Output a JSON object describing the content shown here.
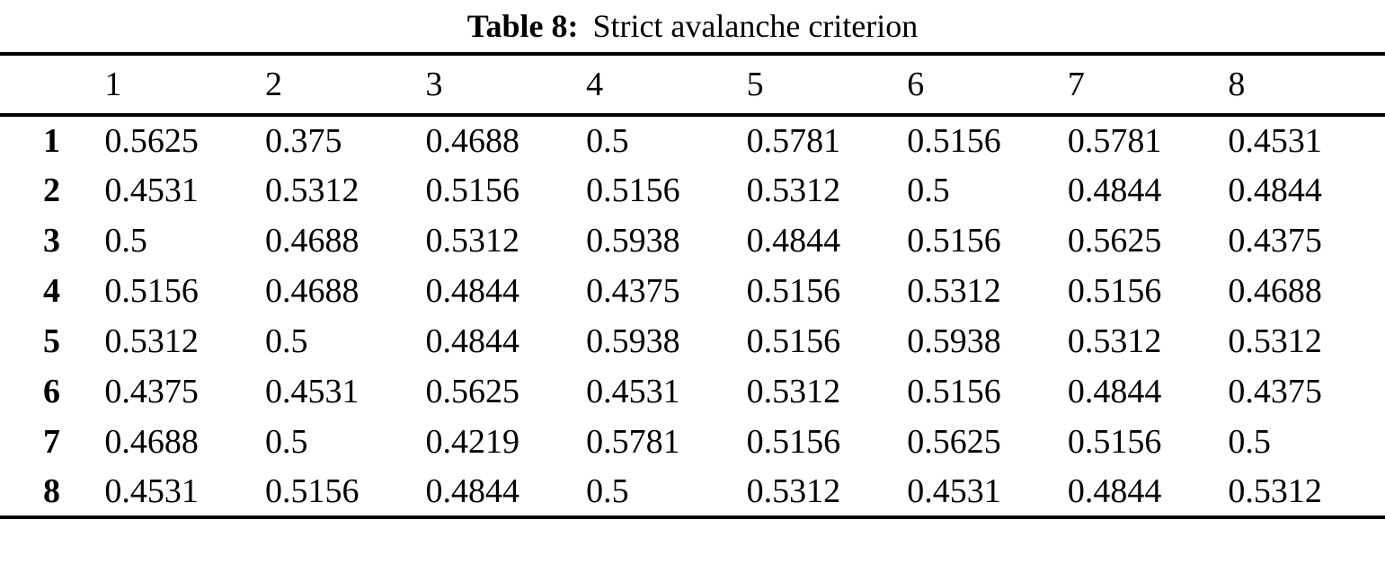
{
  "title": {
    "label": "Table 8:",
    "text": "Strict avalanche criterion"
  },
  "colors": {
    "text": "#000000",
    "background": "#ffffff",
    "rule": "#000000"
  },
  "table": {
    "column_headers": [
      "1",
      "2",
      "3",
      "4",
      "5",
      "6",
      "7",
      "8"
    ],
    "rows": [
      {
        "label": "1",
        "values": [
          "0.5625",
          "0.375",
          "0.4688",
          "0.5",
          "0.5781",
          "0.5156",
          "0.5781",
          "0.4531"
        ]
      },
      {
        "label": "2",
        "values": [
          "0.4531",
          "0.5312",
          "0.5156",
          "0.5156",
          "0.5312",
          "0.5",
          "0.4844",
          "0.4844"
        ]
      },
      {
        "label": "3",
        "values": [
          "0.5",
          "0.4688",
          "0.5312",
          "0.5938",
          "0.4844",
          "0.5156",
          "0.5625",
          "0.4375"
        ]
      },
      {
        "label": "4",
        "values": [
          "0.5156",
          "0.4688",
          "0.4844",
          "0.4375",
          "0.5156",
          "0.5312",
          "0.5156",
          "0.4688"
        ]
      },
      {
        "label": "5",
        "values": [
          "0.5312",
          "0.5",
          "0.4844",
          "0.5938",
          "0.5156",
          "0.5938",
          "0.5312",
          "0.5312"
        ]
      },
      {
        "label": "6",
        "values": [
          "0.4375",
          "0.4531",
          "0.5625",
          "0.4531",
          "0.5312",
          "0.5156",
          "0.4844",
          "0.4375"
        ]
      },
      {
        "label": "7",
        "values": [
          "0.4688",
          "0.5",
          "0.4219",
          "0.5781",
          "0.5156",
          "0.5625",
          "0.5156",
          "0.5"
        ]
      },
      {
        "label": "8",
        "values": [
          "0.4531",
          "0.5156",
          "0.4844",
          "0.5",
          "0.5312",
          "0.4531",
          "0.4844",
          "0.5312"
        ]
      }
    ]
  }
}
